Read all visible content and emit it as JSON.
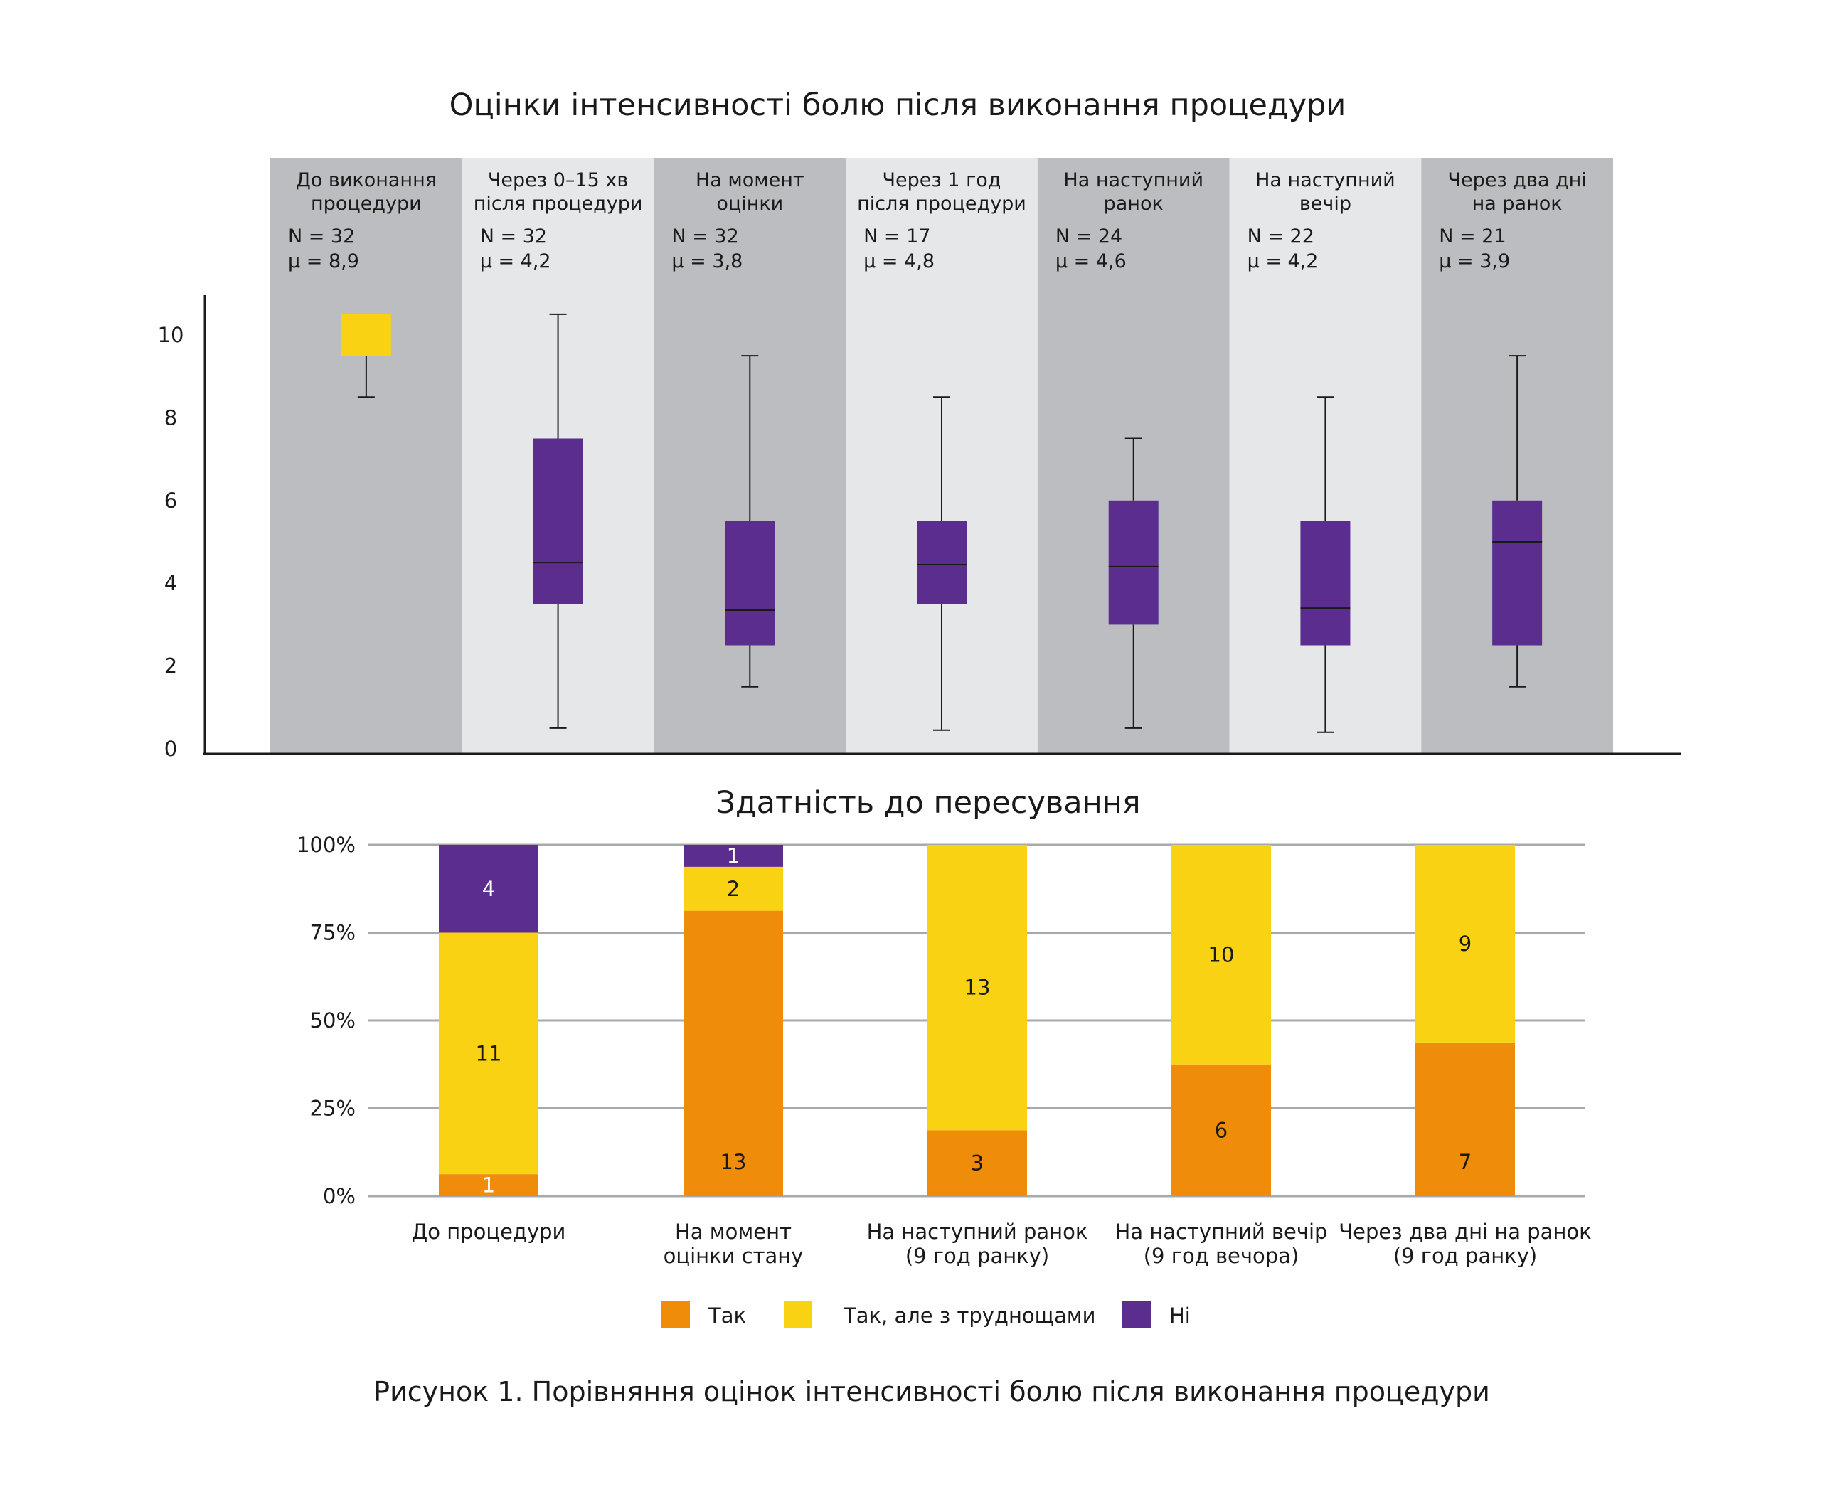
{
  "caption": "Рисунок 1. Порівняння оцінок інтенсивності болю після виконання процедури",
  "chart_data": [
    {
      "type": "box",
      "title": "Оцінки інтенсивності болю після виконання процедури",
      "ylim": [
        0,
        11
      ],
      "yticks": [
        "0",
        "2",
        "4",
        "6",
        "8",
        "10"
      ],
      "groups": [
        {
          "label": [
            "До виконання",
            "процедури"
          ],
          "n": "N = 32",
          "mu": "μ = 8,9",
          "whisker_low": 8.5,
          "q1": 9.5,
          "median": 10,
          "q3": 10.5,
          "whisker_high": 10.5,
          "color": "#f8d213"
        },
        {
          "label": [
            "Через 0–15 хв",
            "після процедури"
          ],
          "n": "N = 32",
          "mu": "μ = 4,2",
          "whisker_low": 0.5,
          "q1": 3.5,
          "median": 4.5,
          "q3": 7.5,
          "whisker_high": 10.5,
          "color": "#5b2d8e"
        },
        {
          "label": [
            "На момент",
            "оцінки"
          ],
          "n": "N = 32",
          "mu": "μ = 3,8",
          "whisker_low": 1.5,
          "q1": 2.5,
          "median": 3.35,
          "q3": 5.5,
          "whisker_high": 9.5,
          "color": "#5b2d8e"
        },
        {
          "label": [
            "Через 1 год",
            "після процедури"
          ],
          "n": "N = 17",
          "mu": "μ = 4,8",
          "whisker_low": 0.45,
          "q1": 3.5,
          "median": 4.45,
          "q3": 5.5,
          "whisker_high": 8.5,
          "color": "#5b2d8e"
        },
        {
          "label": [
            "На наступний",
            "ранок"
          ],
          "n": "N = 24",
          "mu": "μ = 4,6",
          "whisker_low": 0.5,
          "q1": 3.0,
          "median": 4.4,
          "q3": 6.0,
          "whisker_high": 7.5,
          "color": "#5b2d8e"
        },
        {
          "label": [
            "На наступний",
            "вечір"
          ],
          "n": "N = 22",
          "mu": "μ = 4,2",
          "whisker_low": 0.4,
          "q1": 2.5,
          "median": 3.4,
          "q3": 5.5,
          "whisker_high": 8.5,
          "color": "#5b2d8e"
        },
        {
          "label": [
            "Через два дні",
            "на ранок"
          ],
          "n": "N = 21",
          "mu": "μ = 3,9",
          "whisker_low": 1.5,
          "q1": 2.5,
          "median": 5.0,
          "q3": 6.0,
          "whisker_high": 9.5,
          "color": "#5b2d8e"
        }
      ]
    },
    {
      "type": "bar",
      "stacked": "percent",
      "title": "Здатність до пересування",
      "yticks": [
        "0%",
        "25%",
        "50%",
        "75%",
        "100%"
      ],
      "categories": [
        [
          "До процедури"
        ],
        [
          "На момент",
          "оцінки стану"
        ],
        [
          "На наступний ранок",
          "(9 год ранку)"
        ],
        [
          "На наступний вечір",
          "(9 год вечора)"
        ],
        [
          "Через два дні на ранок",
          "(9 год ранку)"
        ]
      ],
      "series": [
        {
          "name": "Так",
          "color": "#ef8c0a",
          "values": [
            1,
            13,
            3,
            6,
            7
          ]
        },
        {
          "name": "Так, але з труднощами",
          "color": "#f8d213",
          "values": [
            11,
            2,
            13,
            10,
            9
          ]
        },
        {
          "name": "Ні",
          "color": "#5b2d8e",
          "values": [
            4,
            1,
            0,
            0,
            0
          ]
        }
      ],
      "legend": "bottom"
    }
  ]
}
